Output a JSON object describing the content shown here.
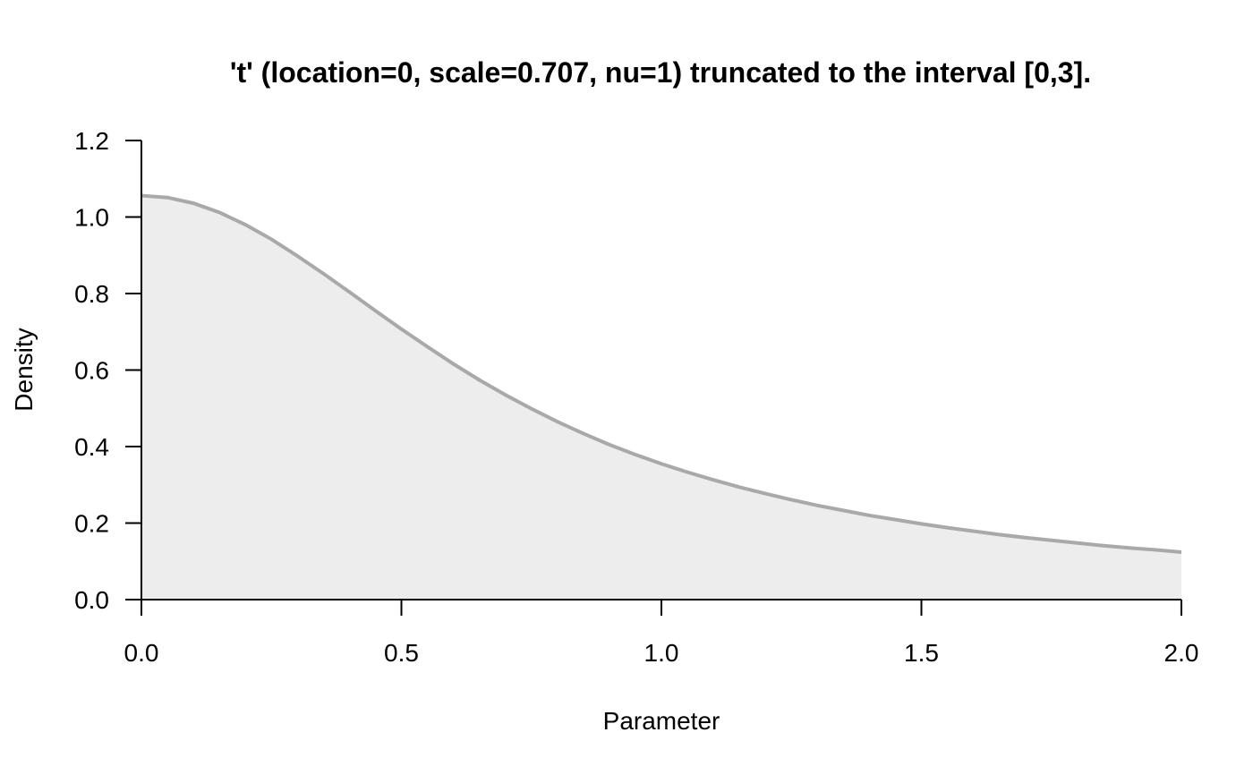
{
  "chart_data": {
    "type": "area",
    "title": "'t' (location=0, scale=0.707, nu=1) truncated to the interval [0,3].",
    "xlabel": "Parameter",
    "ylabel": "Density",
    "xlim": [
      0,
      2
    ],
    "ylim": [
      0,
      1.2
    ],
    "x_ticks": [
      0,
      0.5,
      1,
      1.5,
      2
    ],
    "x_tick_labels": [
      "0.0",
      "0.5",
      "1.0",
      "1.5",
      "2.0"
    ],
    "y_ticks": [
      0,
      0.2,
      0.4,
      0.6,
      0.8,
      1,
      1.2
    ],
    "y_tick_labels": [
      "0.0",
      "0.2",
      "0.4",
      "0.6",
      "0.8",
      "1.0",
      "1.2"
    ],
    "grid": false,
    "legend": "none",
    "series": [
      {
        "x": [
          0,
          0.05,
          0.1,
          0.15,
          0.2,
          0.25,
          0.3,
          0.35,
          0.4,
          0.45,
          0.5,
          0.55,
          0.6,
          0.65,
          0.7,
          0.75,
          0.8,
          0.85,
          0.9,
          0.95,
          1,
          1.05,
          1.1,
          1.15,
          1.2,
          1.25,
          1.3,
          1.35,
          1.4,
          1.45,
          1.5,
          1.55,
          1.6,
          1.65,
          1.7,
          1.75,
          1.8,
          1.85,
          1.9,
          1.95,
          2
        ],
        "y": [
          1.056,
          1.051,
          1.036,
          1.012,
          0.98,
          0.942,
          0.898,
          0.852,
          0.804,
          0.755,
          0.707,
          0.661,
          0.616,
          0.574,
          0.535,
          0.499,
          0.465,
          0.434,
          0.405,
          0.379,
          0.355,
          0.333,
          0.313,
          0.294,
          0.277,
          0.261,
          0.246,
          0.233,
          0.22,
          0.209,
          0.198,
          0.188,
          0.179,
          0.17,
          0.162,
          0.155,
          0.148,
          0.141,
          0.135,
          0.13,
          0.124
        ]
      }
    ],
    "colors": {
      "line": "#a9a9a9",
      "fill": "#ededed",
      "axis": "#000000"
    }
  }
}
